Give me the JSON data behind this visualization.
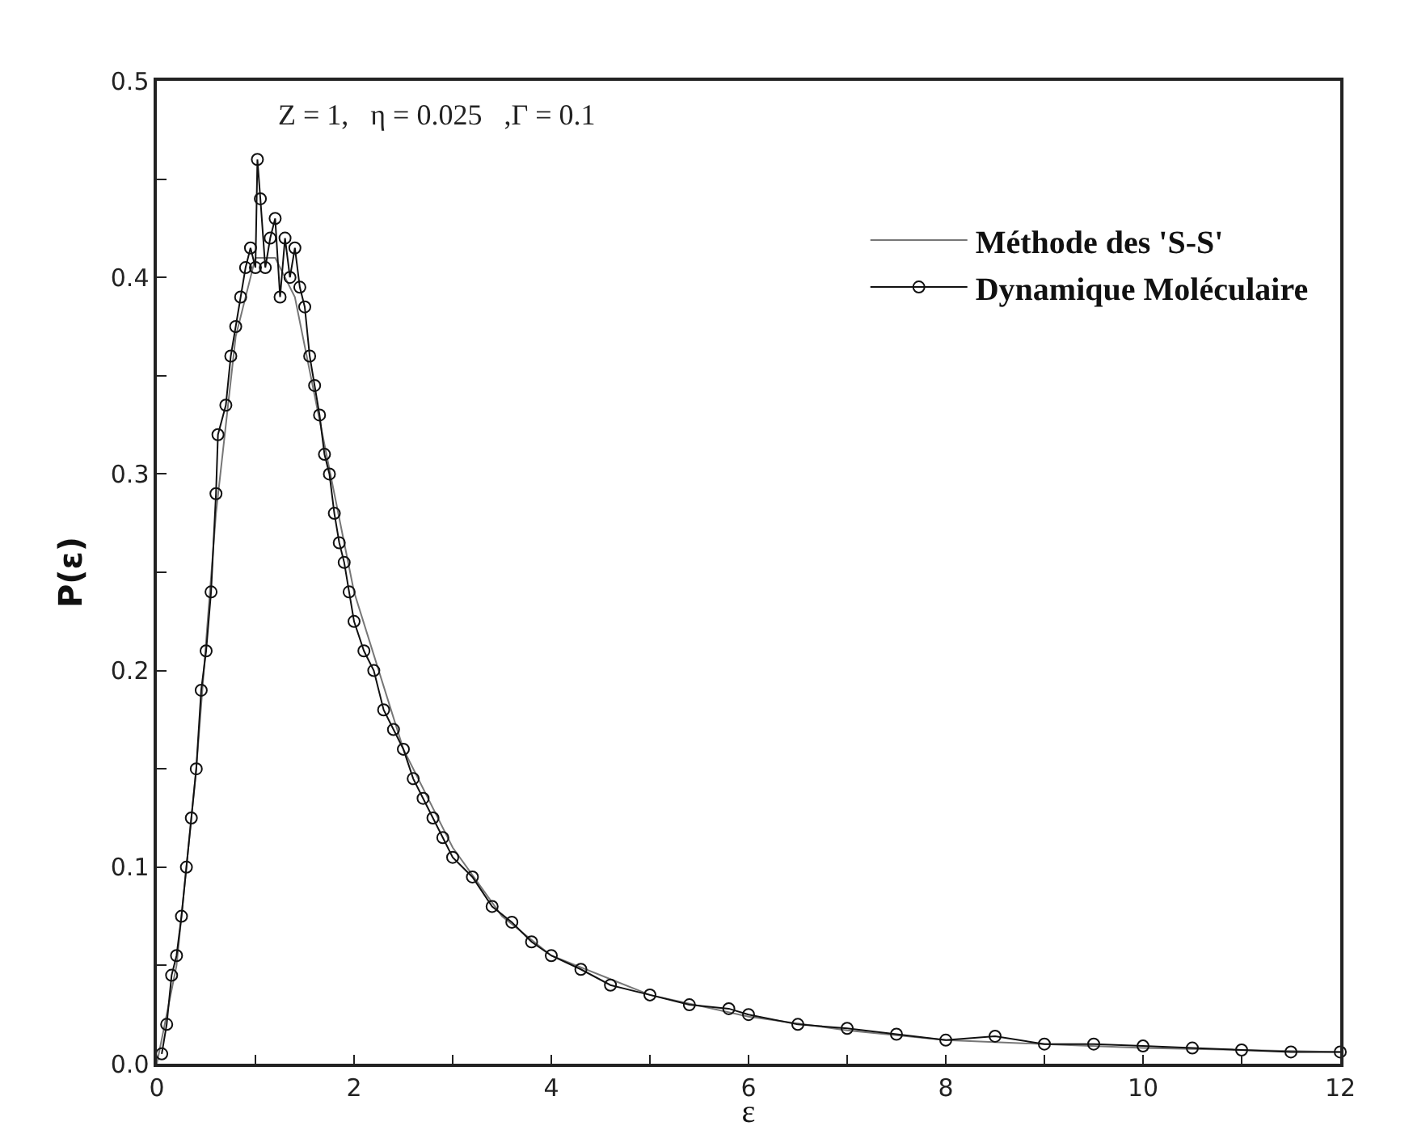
{
  "chart_data": {
    "type": "line",
    "xlabel": "ε",
    "ylabel": "P(ε)",
    "annotations": [
      "Z = 1,   η = 0.025   ,Γ = 0.1"
    ],
    "xlim": [
      0,
      12
    ],
    "ylim": [
      0,
      0.5
    ],
    "xticks": [
      0,
      {
        "value": 1,
        "label": null
      },
      2,
      {
        "value": 3,
        "label": null
      },
      4,
      {
        "value": 5,
        "label": null
      },
      6,
      {
        "value": 7,
        "label": null
      },
      8,
      {
        "value": 9,
        "label": null
      },
      10,
      {
        "value": 11,
        "label": null
      },
      12
    ],
    "yticks": [
      {
        "value": 0,
        "label": "0.0"
      },
      {
        "value": 0.05,
        "label": null
      },
      0.1,
      {
        "value": 0.15,
        "label": null
      },
      0.2,
      {
        "value": 0.25,
        "label": null
      },
      0.3,
      {
        "value": 0.35,
        "label": null
      },
      0.4,
      {
        "value": 0.45,
        "label": null
      },
      0.5
    ],
    "legend": "top right",
    "grid": false,
    "series": [
      {
        "name": "Méthode des 'S-S'",
        "color": "#777777",
        "marker": "none",
        "x": [
          0,
          0.2,
          0.4,
          0.6,
          0.8,
          1.0,
          1.2,
          1.4,
          1.6,
          1.8,
          2.0,
          2.5,
          3.0,
          3.5,
          4.0,
          5.0,
          6.0,
          7.0,
          8.0,
          9.0,
          10.0,
          11.0,
          12.0
        ],
        "values": [
          0,
          0.05,
          0.15,
          0.28,
          0.37,
          0.41,
          0.41,
          0.39,
          0.34,
          0.29,
          0.24,
          0.16,
          0.11,
          0.075,
          0.055,
          0.035,
          0.024,
          0.017,
          0.012,
          0.01,
          0.008,
          0.007,
          0.006
        ]
      },
      {
        "name": "Dynamique Moléculaire",
        "color": "#111111",
        "marker": "circle",
        "x": [
          0.05,
          0.1,
          0.15,
          0.2,
          0.25,
          0.3,
          0.35,
          0.4,
          0.45,
          0.5,
          0.55,
          0.6,
          0.62,
          0.7,
          0.75,
          0.8,
          0.85,
          0.9,
          0.95,
          1.0,
          1.02,
          1.05,
          1.1,
          1.15,
          1.2,
          1.25,
          1.3,
          1.35,
          1.4,
          1.45,
          1.5,
          1.55,
          1.6,
          1.65,
          1.7,
          1.75,
          1.8,
          1.85,
          1.9,
          1.95,
          2.0,
          2.1,
          2.2,
          2.3,
          2.4,
          2.5,
          2.6,
          2.7,
          2.8,
          2.9,
          3.0,
          3.2,
          3.4,
          3.6,
          3.8,
          4.0,
          4.3,
          4.6,
          5.0,
          5.4,
          5.8,
          6.0,
          6.5,
          7.0,
          7.5,
          8.0,
          8.5,
          9.0,
          9.5,
          10.0,
          10.5,
          11.0,
          11.5,
          12.0
        ],
        "values": [
          0.005,
          0.02,
          0.045,
          0.055,
          0.075,
          0.1,
          0.125,
          0.15,
          0.19,
          0.21,
          0.24,
          0.29,
          0.32,
          0.335,
          0.36,
          0.375,
          0.39,
          0.405,
          0.415,
          0.405,
          0.46,
          0.44,
          0.405,
          0.42,
          0.43,
          0.39,
          0.42,
          0.4,
          0.415,
          0.395,
          0.385,
          0.36,
          0.345,
          0.33,
          0.31,
          0.3,
          0.28,
          0.265,
          0.255,
          0.24,
          0.225,
          0.21,
          0.2,
          0.18,
          0.17,
          0.16,
          0.145,
          0.135,
          0.125,
          0.115,
          0.105,
          0.095,
          0.08,
          0.072,
          0.062,
          0.055,
          0.048,
          0.04,
          0.035,
          0.03,
          0.028,
          0.025,
          0.02,
          0.018,
          0.015,
          0.012,
          0.014,
          0.01,
          0.01,
          0.009,
          0.008,
          0.007,
          0.006,
          0.006
        ]
      }
    ]
  }
}
